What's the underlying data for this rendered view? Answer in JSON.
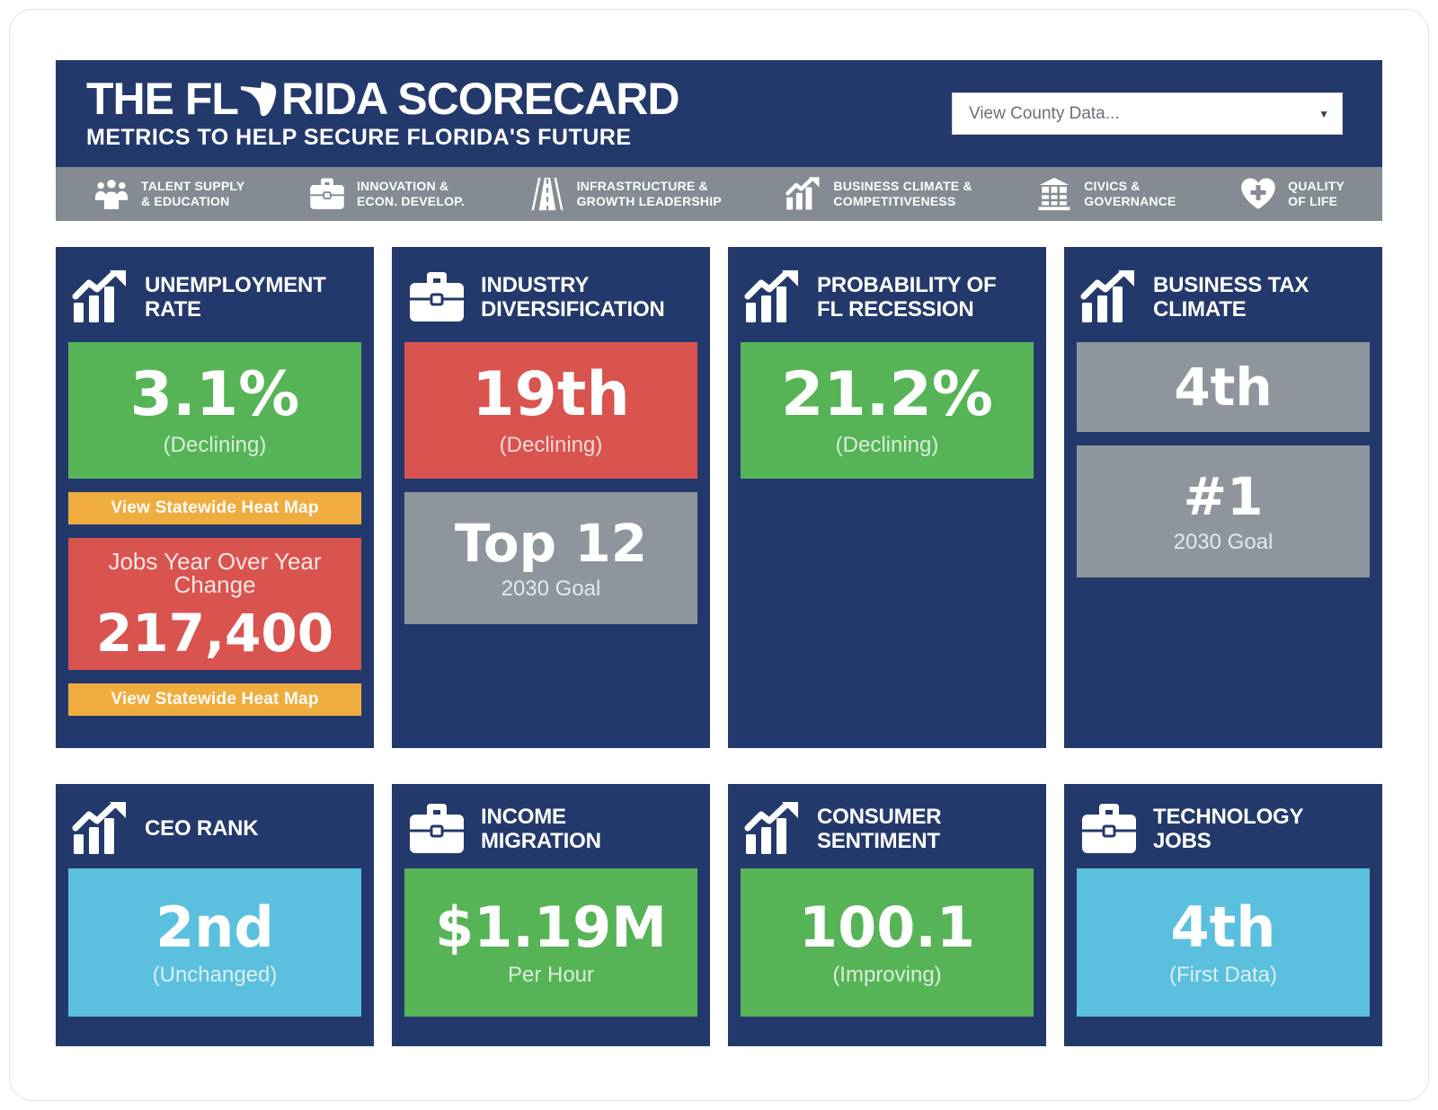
{
  "header": {
    "title_prefix": "THE FL",
    "title_suffix": "RIDA SCORECARD",
    "title_full": "THE FLORIDA SCORECARD",
    "subtitle": "METRICS TO HELP SECURE FLORIDA'S FUTURE",
    "county_select": {
      "value": "View County Data...",
      "arrow": "▼"
    }
  },
  "colors": {
    "navy": "#24396b",
    "nav_gray": "#848b92",
    "green": "#56b457",
    "red": "#d9534f",
    "orange": "#efad40",
    "gray": "#8e959d",
    "light_blue": "#5bc0de"
  },
  "nav": {
    "items": [
      {
        "id": "talent-supply-education",
        "icon": "people-icon",
        "lines": [
          "TALENT SUPPLY",
          "& EDUCATION"
        ]
      },
      {
        "id": "innovation-econ-develop",
        "icon": "briefcase-icon",
        "lines": [
          "INNOVATION &",
          "ECON. DEVELOP."
        ]
      },
      {
        "id": "infrastructure-growth",
        "icon": "highway-icon",
        "lines": [
          "INFRASTRUCTURE &",
          "GROWTH LEADERSHIP"
        ]
      },
      {
        "id": "business-climate",
        "icon": "trending-chart-icon",
        "lines": [
          "BUSINESS CLIMATE &",
          "COMPETITIVENESS"
        ]
      },
      {
        "id": "civics-governance",
        "icon": "courthouse-icon",
        "lines": [
          "CIVICS &",
          "GOVERNANCE"
        ]
      },
      {
        "id": "quality-of-life",
        "icon": "heart-plus-icon",
        "lines": [
          "QUALITY",
          "OF LIFE"
        ]
      }
    ]
  },
  "cards": {
    "row1": [
      {
        "id": "unemployment-rate",
        "icon": "trending-chart-icon",
        "title_lines": [
          "UNEMPLOYMENT",
          "RATE"
        ],
        "boxes": [
          {
            "kind": "value",
            "color": "green",
            "size": "tall",
            "value": "3.1%",
            "sub": "(Declining)"
          },
          {
            "kind": "button",
            "color": "orange",
            "label": "View Statewide Heat Map"
          },
          {
            "kind": "value",
            "color": "red",
            "size": "med",
            "label": "Jobs Year Over Year Change",
            "value": "217,400"
          },
          {
            "kind": "button",
            "color": "orange",
            "label": "View Statewide Heat Map"
          }
        ]
      },
      {
        "id": "industry-diversification",
        "icon": "briefcase-icon",
        "title_lines": [
          "INDUSTRY",
          "DIVERSIFICATION"
        ],
        "boxes": [
          {
            "kind": "value",
            "color": "red",
            "size": "tall",
            "value": "19th",
            "sub": "(Declining)"
          },
          {
            "kind": "value",
            "color": "gray",
            "size": "med",
            "value": "Top 12",
            "sub": "2030 Goal"
          }
        ]
      },
      {
        "id": "probability-of-fl-recession",
        "icon": "trending-chart-icon",
        "title_lines": [
          "PROBABILITY OF",
          "FL RECESSION"
        ],
        "boxes": [
          {
            "kind": "value",
            "color": "green",
            "size": "tall",
            "value": "21.2%",
            "sub": "(Declining)"
          }
        ]
      },
      {
        "id": "business-tax-climate",
        "icon": "trending-chart-icon",
        "title_lines": [
          "BUSINESS TAX",
          "CLIMATE"
        ],
        "boxes": [
          {
            "kind": "value",
            "color": "gray",
            "size": "short",
            "value": "4th"
          },
          {
            "kind": "value",
            "color": "gray",
            "size": "med",
            "value": "#1",
            "sub": "2030 Goal"
          }
        ]
      }
    ],
    "row2": [
      {
        "id": "ceo-rank",
        "icon": "trending-chart-icon",
        "title_lines": [
          "CEO RANK"
        ],
        "boxes": [
          {
            "kind": "value",
            "color": "light_blue",
            "size": "row2",
            "value": "2nd",
            "sub": "(Unchanged)"
          }
        ]
      },
      {
        "id": "income-migration",
        "icon": "briefcase-icon",
        "title_lines": [
          "INCOME",
          "MIGRATION"
        ],
        "boxes": [
          {
            "kind": "value",
            "color": "green",
            "size": "row2",
            "value": "$1.19M",
            "sub": "Per Hour"
          }
        ]
      },
      {
        "id": "consumer-sentiment",
        "icon": "trending-chart-icon",
        "title_lines": [
          "CONSUMER",
          "SENTIMENT"
        ],
        "boxes": [
          {
            "kind": "value",
            "color": "green",
            "size": "row2",
            "value": "100.1",
            "sub": "(Improving)"
          }
        ]
      },
      {
        "id": "technology-jobs",
        "icon": "briefcase-icon",
        "title_lines": [
          "TECHNOLOGY JOBS"
        ],
        "boxes": [
          {
            "kind": "value",
            "color": "light_blue",
            "size": "row2",
            "value": "4th",
            "sub": "(First Data)"
          }
        ]
      }
    ]
  }
}
